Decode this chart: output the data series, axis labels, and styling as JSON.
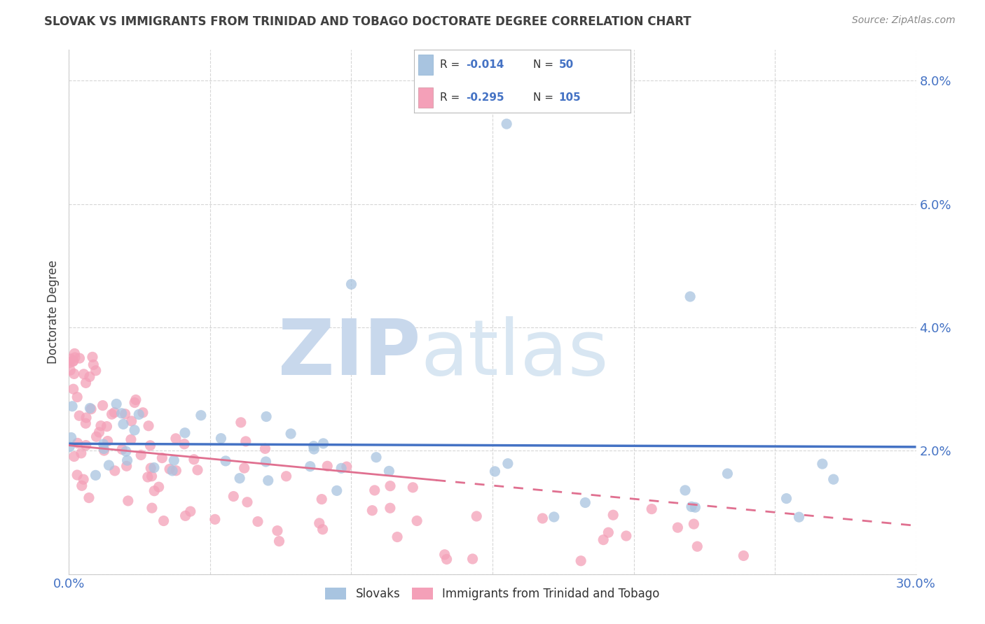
{
  "title": "SLOVAK VS IMMIGRANTS FROM TRINIDAD AND TOBAGO DOCTORATE DEGREE CORRELATION CHART",
  "source": "Source: ZipAtlas.com",
  "ylabel": "Doctorate Degree",
  "xlim": [
    0.0,
    0.3
  ],
  "ylim": [
    0.0,
    0.085
  ],
  "xticks": [
    0.0,
    0.05,
    0.1,
    0.15,
    0.2,
    0.25,
    0.3
  ],
  "yticks": [
    0.0,
    0.02,
    0.04,
    0.06,
    0.08
  ],
  "legend_labels": [
    "Slovaks",
    "Immigrants from Trinidad and Tobago"
  ],
  "legend_R": [
    "-0.014",
    "-0.295"
  ],
  "legend_N": [
    "50",
    "105"
  ],
  "slovak_color": "#a8c4e0",
  "tt_color": "#f4a0b8",
  "slovak_line_color": "#4472c4",
  "tt_line_color": "#e07090",
  "background_color": "#ffffff",
  "grid_color": "#cccccc",
  "tick_color": "#4472c4",
  "title_color": "#404040"
}
